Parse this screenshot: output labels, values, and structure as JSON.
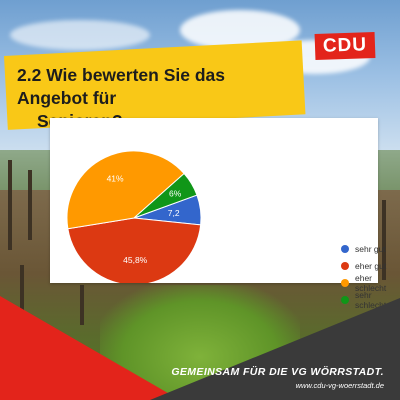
{
  "brand": {
    "logo_text": "CDU",
    "logo_color": "#e3241b",
    "banner_color": "#f9c817"
  },
  "title": {
    "line1": "2.2 Wie bewerten Sie das Angebot für",
    "line2": "Senioren?"
  },
  "footer": {
    "slogan": "GEMEINSAM FÜR DIE VG WÖRRSTADT.",
    "url": "www.cdu-vg-woerrstadt.de"
  },
  "chart_data": {
    "type": "pie",
    "title": "",
    "slices": [
      {
        "label": "sehr gut",
        "value": 7.2,
        "display": "7,2",
        "color": "#3366cc"
      },
      {
        "label": "eher gut",
        "value": 45.8,
        "display": "45,8%",
        "color": "#dc3912"
      },
      {
        "label": "eher schlecht",
        "value": 41,
        "display": "41%",
        "color": "#ff9900"
      },
      {
        "label": "sehr schlecht",
        "value": 6,
        "display": "6%",
        "color": "#109618"
      }
    ],
    "legend_position": "right"
  }
}
